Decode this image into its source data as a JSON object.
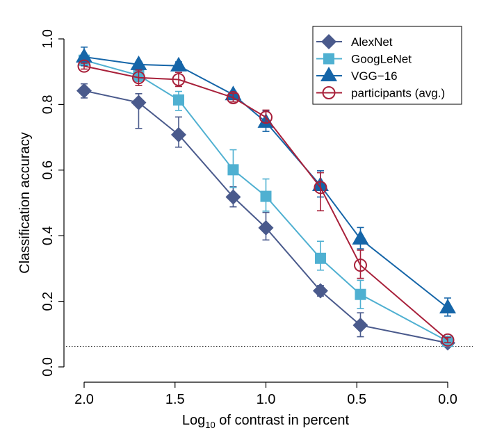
{
  "chart_data": {
    "type": "line",
    "ylabel": "Classification accuracy",
    "xlabel_main": "Log",
    "xlabel_sub": "10",
    "xlabel_rest": " of contrast in percent",
    "x_ticks": [
      "2.0",
      "1.5",
      "1.0",
      "0.5",
      "0.0"
    ],
    "x_tick_values": [
      2.0,
      1.5,
      1.0,
      0.5,
      0.0
    ],
    "y_ticks": [
      "0.0",
      "0.2",
      "0.4",
      "0.6",
      "0.8",
      "1.0"
    ],
    "y_tick_values": [
      0.0,
      0.2,
      0.4,
      0.6,
      0.8,
      1.0
    ],
    "xlim": [
      2.0,
      0.0
    ],
    "ylim": [
      0.0,
      1.0
    ],
    "x_reversed": true,
    "x": [
      2.0,
      1.7,
      1.48,
      1.18,
      1.0,
      0.7,
      0.48,
      0.0
    ],
    "chance_level": 0.0625,
    "legend_position": "top-right",
    "series": [
      {
        "name": "AlexNet",
        "marker": "diamond",
        "color": "#4a5a8c",
        "values": [
          0.842,
          0.806,
          0.708,
          0.518,
          0.424,
          0.232,
          0.127,
          0.073
        ],
        "err_low": [
          0.82,
          0.727,
          0.67,
          0.488,
          0.387,
          0.216,
          0.092,
          0.066
        ],
        "err_high": [
          0.863,
          0.833,
          0.762,
          0.549,
          0.471,
          0.248,
          0.165,
          0.084
        ]
      },
      {
        "name": "GoogLeNet",
        "marker": "square",
        "color": "#4fb0d1",
        "values": [
          0.935,
          0.889,
          0.814,
          0.601,
          0.52,
          0.331,
          0.221,
          0.078
        ],
        "err_low": [
          0.918,
          0.87,
          0.782,
          0.547,
          0.475,
          0.295,
          0.178,
          0.066
        ],
        "err_high": [
          0.948,
          0.908,
          0.84,
          0.662,
          0.573,
          0.383,
          0.264,
          0.09
        ]
      },
      {
        "name": "VGG−16",
        "marker": "triangle",
        "color": "#1565a8",
        "values": [
          0.945,
          0.922,
          0.918,
          0.83,
          0.746,
          0.553,
          0.39,
          0.18
        ],
        "err_low": [
          0.918,
          0.913,
          0.906,
          0.82,
          0.718,
          0.518,
          0.36,
          0.155
        ],
        "err_high": [
          0.975,
          0.93,
          0.93,
          0.84,
          0.78,
          0.598,
          0.425,
          0.21
        ]
      },
      {
        "name": "participants (avg.)",
        "marker": "open-circle",
        "color": "#a8203a",
        "values": [
          0.917,
          0.882,
          0.876,
          0.821,
          0.761,
          0.547,
          0.31,
          0.082
        ],
        "err_low": [
          0.908,
          0.858,
          0.855,
          0.808,
          0.745,
          0.476,
          0.27,
          0.074
        ],
        "err_high": [
          0.926,
          0.905,
          0.898,
          0.834,
          0.783,
          0.592,
          0.356,
          0.09
        ]
      }
    ]
  }
}
